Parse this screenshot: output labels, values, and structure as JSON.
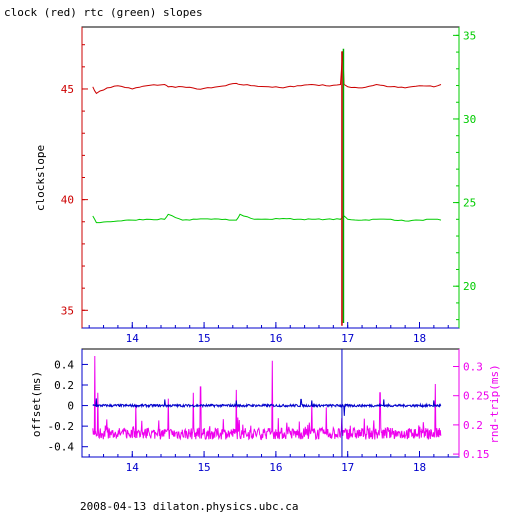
{
  "chart_data": [
    {
      "type": "line",
      "title": "clock (red) rtc (green) slopes",
      "ylabel": "clockslope",
      "xlim": [
        13.3,
        18.55
      ],
      "ylim_left": [
        34.2,
        47.8
      ],
      "ylim_right": [
        17.5,
        35.5
      ],
      "x_ticks": [
        "14",
        "15",
        "16",
        "17",
        "18"
      ],
      "y_left_ticks": [
        "35",
        "40",
        "45"
      ],
      "y_right_ticks": [
        "20",
        "25",
        "30",
        "35"
      ],
      "colors": {
        "axis_bottom": "#0000cc",
        "left_axis": "#cc0000",
        "right_axis": "#00cc00",
        "frame": "#000000"
      },
      "series": [
        {
          "axis": "left",
          "color": "#cc0000",
          "x": [
            13.45,
            13.5,
            13.65,
            13.8,
            14.0,
            14.2,
            14.45,
            14.5,
            14.7,
            14.9,
            15.1,
            15.3,
            15.45,
            15.5,
            15.7,
            15.9,
            16.1,
            16.3,
            16.5,
            16.7,
            16.9,
            16.93,
            16.95,
            17.0,
            17.2,
            17.4,
            17.6,
            17.8,
            18.0,
            18.2,
            18.3
          ],
          "values": [
            45.1,
            44.8,
            45.05,
            45.15,
            45.0,
            45.15,
            45.2,
            45.1,
            45.1,
            45.0,
            45.05,
            45.15,
            45.25,
            45.2,
            45.15,
            45.1,
            45.05,
            45.15,
            45.2,
            45.15,
            45.2,
            46.7,
            45.2,
            45.1,
            45.05,
            45.2,
            45.1,
            45.05,
            45.15,
            45.1,
            45.2
          ]
        },
        {
          "axis": "right",
          "color": "#00cc00",
          "x": [
            13.45,
            13.5,
            13.65,
            13.8,
            14.0,
            14.2,
            14.45,
            14.5,
            14.7,
            14.9,
            15.1,
            15.3,
            15.45,
            15.5,
            15.7,
            15.9,
            16.1,
            16.3,
            16.5,
            16.7,
            16.9,
            16.95,
            17.0,
            17.2,
            17.4,
            17.6,
            17.8,
            18.0,
            18.2,
            18.3
          ],
          "values": [
            24.2,
            23.8,
            23.85,
            23.9,
            23.95,
            24.0,
            24.0,
            24.3,
            23.95,
            24.0,
            24.0,
            24.0,
            23.95,
            24.3,
            24.0,
            24.0,
            24.05,
            24.0,
            24.0,
            24.0,
            24.0,
            24.2,
            24.0,
            23.95,
            24.0,
            24.0,
            23.9,
            23.95,
            24.0,
            23.95
          ]
        }
      ],
      "annotations": [
        {
          "name": "vertical-event",
          "x": 16.92,
          "left_range": [
            34.3,
            46.7
          ],
          "right_range": [
            17.8,
            34.2
          ]
        }
      ]
    },
    {
      "type": "line",
      "ylabel": "offset(ms)",
      "ylabel_right": "rnd-trip(ms)",
      "xlim": [
        13.3,
        18.55
      ],
      "ylim_left": [
        -0.5,
        0.55
      ],
      "ylim_right": [
        0.145,
        0.33
      ],
      "x_ticks": [
        "14",
        "15",
        "16",
        "17",
        "18"
      ],
      "y_left_ticks": [
        "-0.4",
        "-0.2",
        "0",
        "0.2",
        "0.4"
      ],
      "y_right_ticks": [
        "0.15",
        "0.2",
        "0.25",
        "0.3"
      ],
      "colors": {
        "axis_bottom": "#0000cc",
        "left_axis": "#0000cc",
        "right_axis": "#ee00ee"
      },
      "series": [
        {
          "axis": "left",
          "color": "#0000cc",
          "baseline": 0.0,
          "noise": 0.012,
          "x_range": [
            13.45,
            18.3
          ],
          "spikes": [
            [
              13.5,
              0.07
            ],
            [
              14.45,
              0.06
            ],
            [
              15.45,
              0.05
            ],
            [
              16.35,
              0.06
            ],
            [
              16.5,
              0.05
            ],
            [
              16.95,
              -0.1
            ],
            [
              17.5,
              0.06
            ],
            [
              18.2,
              0.05
            ]
          ]
        },
        {
          "axis": "right",
          "color": "#ee00ee",
          "baseline": 0.185,
          "noise": 0.01,
          "x_range": [
            13.45,
            18.3
          ],
          "spikes": [
            [
              13.48,
              0.318
            ],
            [
              13.52,
              0.255
            ],
            [
              14.05,
              0.235
            ],
            [
              14.5,
              0.245
            ],
            [
              14.85,
              0.255
            ],
            [
              14.95,
              0.265
            ],
            [
              15.45,
              0.26
            ],
            [
              15.95,
              0.31
            ],
            [
              16.5,
              0.24
            ],
            [
              16.7,
              0.23
            ],
            [
              17.45,
              0.255
            ],
            [
              18.22,
              0.27
            ]
          ]
        }
      ],
      "annotations": [
        {
          "name": "vertical-event",
          "x": 16.92,
          "left_range": [
            -0.5,
            0.55
          ]
        }
      ]
    }
  ],
  "footer": "2008-04-13 dilaton.physics.ubc.ca"
}
